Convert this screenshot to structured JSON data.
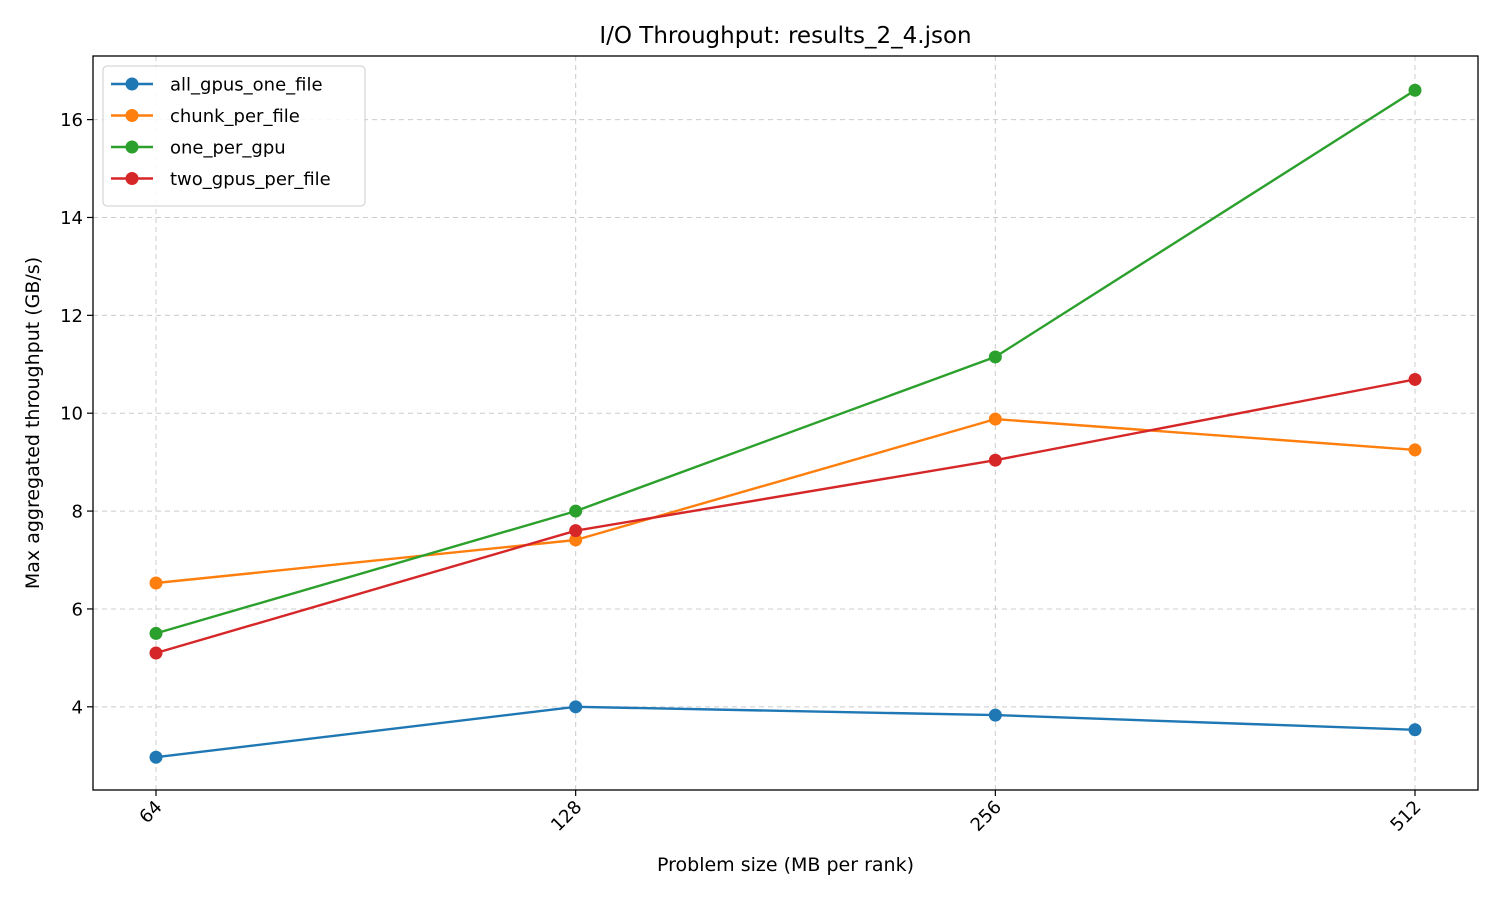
{
  "chart_data": {
    "type": "line",
    "title": "I/O Throughput: results_2_4.json",
    "xlabel": "Problem size (MB per rank)",
    "ylabel": "Max aggregated throughput (GB/s)",
    "x_scale": "log2",
    "x": [
      64,
      128,
      256,
      512
    ],
    "x_tick_labels": [
      "64",
      "128",
      "256",
      "512"
    ],
    "x_tick_rotation_deg": 45,
    "ylim": [
      2.3,
      17.3
    ],
    "y_ticks": [
      4,
      6,
      8,
      10,
      12,
      14,
      16
    ],
    "grid": true,
    "grid_style": "dashed",
    "legend_position": "top-left",
    "marker": "circle",
    "series": [
      {
        "name": "all_gpus_one_file",
        "color": "#1f77b4",
        "values": [
          2.97,
          4.0,
          3.83,
          3.53
        ]
      },
      {
        "name": "chunk_per_file",
        "color": "#ff7f0e",
        "values": [
          6.53,
          7.41,
          9.88,
          9.25
        ]
      },
      {
        "name": "one_per_gpu",
        "color": "#2ca02c",
        "values": [
          5.5,
          8.0,
          11.15,
          16.6
        ]
      },
      {
        "name": "two_gpus_per_file",
        "color": "#d62728",
        "values": [
          5.1,
          7.6,
          9.04,
          10.69
        ]
      }
    ]
  }
}
